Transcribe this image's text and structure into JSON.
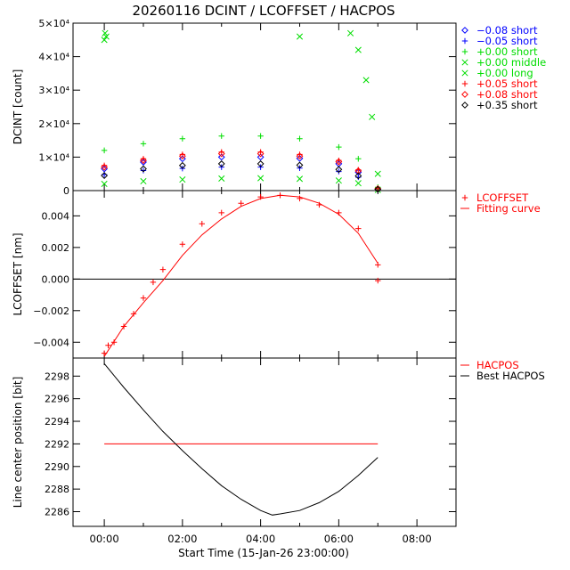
{
  "title": "20260116 DCINT / LCOFFSET / HACPOS",
  "xlabel": "Start Time (15-Jan-26 23:00:00)",
  "x_ticks": [
    "00:00",
    "02:00",
    "04:00",
    "06:00",
    "08:00"
  ],
  "chart_data": [
    {
      "type": "scatter",
      "panel": "top",
      "ylabel": "DCINT [count]",
      "xlim_hours": [
        -0.8,
        9.0
      ],
      "ylim": [
        0,
        50000
      ],
      "y_ticks": [
        {
          "value": 0,
          "label": "0"
        },
        {
          "value": 10000,
          "label": "1×10⁴"
        },
        {
          "value": 20000,
          "label": "2×10⁴"
        },
        {
          "value": 30000,
          "label": "3×10⁴"
        },
        {
          "value": 40000,
          "label": "4×10⁴"
        },
        {
          "value": 50000,
          "label": "5×10⁴"
        }
      ],
      "legend_position": "right",
      "series": [
        {
          "name": "−0.08 short",
          "marker": "diamond",
          "color": "#0000ff",
          "x": [
            0.0,
            1.0,
            2.0,
            3.0,
            4.0,
            5.0,
            6.0,
            6.5,
            7.0
          ],
          "y": [
            6500,
            8500,
            9500,
            10000,
            10000,
            9600,
            8000,
            5500,
            500
          ]
        },
        {
          "name": "−0.05 short",
          "marker": "plus",
          "color": "#0000ff",
          "x": [
            0.0,
            1.0,
            2.0,
            3.0,
            4.0,
            5.0,
            6.0,
            6.5,
            7.0
          ],
          "y": [
            4800,
            6000,
            6600,
            7000,
            7000,
            6700,
            5700,
            4000,
            300
          ]
        },
        {
          "name": "+0.00 short",
          "marker": "plus",
          "color": "#00dd00",
          "x": [
            0.0,
            1.0,
            2.0,
            3.0,
            4.0,
            5.0,
            6.0,
            6.5,
            7.0
          ],
          "y": [
            12000,
            14000,
            15500,
            16300,
            16300,
            15500,
            13000,
            9500,
            1000
          ]
        },
        {
          "name": "+0.00 middle",
          "marker": "x",
          "color": "#00dd00",
          "x": [
            0.0,
            0.02,
            0.05,
            5.0,
            6.3,
            6.5,
            6.7,
            6.85,
            7.0
          ],
          "y": [
            45000,
            47000,
            46000,
            46000,
            47000,
            42000,
            33000,
            22000,
            5000
          ]
        },
        {
          "name": "+0.00 long",
          "marker": "x",
          "color": "#00dd00",
          "x": [
            0.0,
            1.0,
            2.0,
            3.0,
            4.0,
            5.0,
            6.0,
            6.5,
            7.0
          ],
          "y": [
            2000,
            2800,
            3300,
            3600,
            3700,
            3500,
            3000,
            2200,
            200
          ]
        },
        {
          "name": "+0.05 short",
          "marker": "plus",
          "color": "#ff0000",
          "x": [
            0.0,
            1.0,
            2.0,
            3.0,
            4.0,
            5.0,
            6.0,
            6.5,
            7.0
          ],
          "y": [
            7500,
            9500,
            10800,
            11500,
            11500,
            10800,
            9000,
            6200,
            600
          ]
        },
        {
          "name": "+0.08 short",
          "marker": "diamond",
          "color": "#ff0000",
          "x": [
            0.0,
            1.0,
            2.0,
            3.0,
            4.0,
            5.0,
            6.0,
            6.5,
            7.0
          ],
          "y": [
            7000,
            9000,
            10300,
            11000,
            11000,
            10300,
            8600,
            5900,
            550
          ]
        },
        {
          "name": "+0.35 short",
          "marker": "diamond",
          "color": "#000000",
          "x": [
            0.0,
            1.0,
            2.0,
            3.0,
            4.0,
            5.0,
            6.0,
            6.5,
            7.0
          ],
          "y": [
            4500,
            6500,
            7500,
            8000,
            8000,
            7600,
            6300,
            4400,
            400
          ]
        }
      ]
    },
    {
      "type": "scatter",
      "panel": "middle",
      "ylabel": "LCOFFSET [nm]",
      "xlim_hours": [
        -0.8,
        9.0
      ],
      "ylim": [
        -0.005,
        0.0056
      ],
      "y_ticks": [
        {
          "value": -0.004,
          "label": "−0.004"
        },
        {
          "value": -0.002,
          "label": "−0.002"
        },
        {
          "value": 0.0,
          "label": "0.000"
        },
        {
          "value": 0.002,
          "label": "0.002"
        },
        {
          "value": 0.004,
          "label": "0.004"
        }
      ],
      "zero_line": true,
      "legend_position": "right",
      "series": [
        {
          "name": "LCOFFSET",
          "marker": "plus",
          "color": "#ff0000",
          "x": [
            0.0,
            0.1,
            0.25,
            0.5,
            0.75,
            1.0,
            1.25,
            1.5,
            2.0,
            2.5,
            3.0,
            3.5,
            4.0,
            4.5,
            5.0,
            5.5,
            6.0,
            6.5,
            7.0,
            7.0
          ],
          "y": [
            -0.0047,
            -0.0042,
            -0.004,
            -0.003,
            -0.0022,
            -0.0012,
            -0.0002,
            0.0006,
            0.0022,
            0.0035,
            0.0042,
            0.0048,
            0.0052,
            0.0053,
            0.0051,
            0.0047,
            0.0042,
            0.0032,
            0.0009,
            -0.0001
          ]
        },
        {
          "name": "Fitting curve",
          "marker": "line",
          "color": "#ff0000",
          "x": [
            0.0,
            0.5,
            1.0,
            1.5,
            2.0,
            2.5,
            3.0,
            3.5,
            4.0,
            4.5,
            5.0,
            5.5,
            6.0,
            6.5,
            7.0
          ],
          "y": [
            -0.0049,
            -0.003,
            -0.0015,
            -0.0001,
            0.0015,
            0.0028,
            0.0038,
            0.0046,
            0.0051,
            0.0053,
            0.0052,
            0.0048,
            0.0041,
            0.0029,
            0.001
          ]
        }
      ]
    },
    {
      "type": "line",
      "panel": "bottom",
      "ylabel": "Line center position [bit]",
      "xlim_hours": [
        -0.8,
        9.0
      ],
      "ylim": [
        2284.7,
        2299.6
      ],
      "y_ticks": [
        {
          "value": 2286,
          "label": "2286"
        },
        {
          "value": 2288,
          "label": "2288"
        },
        {
          "value": 2290,
          "label": "2290"
        },
        {
          "value": 2292,
          "label": "2292"
        },
        {
          "value": 2294,
          "label": "2294"
        },
        {
          "value": 2296,
          "label": "2296"
        },
        {
          "value": 2298,
          "label": "2298"
        }
      ],
      "legend_position": "right",
      "series": [
        {
          "name": "HACPOS",
          "color": "#ff0000",
          "x": [
            0.0,
            7.0
          ],
          "y": [
            2292,
            2292
          ]
        },
        {
          "name": "Best HACPOS",
          "color": "#000000",
          "x": [
            0.0,
            0.5,
            1.0,
            1.5,
            2.0,
            2.5,
            3.0,
            3.5,
            4.0,
            4.3,
            4.5,
            5.0,
            5.5,
            6.0,
            6.5,
            7.0
          ],
          "y": [
            2299.1,
            2297.0,
            2295.0,
            2293.1,
            2291.4,
            2289.8,
            2288.3,
            2287.1,
            2286.1,
            2285.7,
            2285.8,
            2286.1,
            2286.8,
            2287.8,
            2289.2,
            2290.8
          ]
        }
      ]
    }
  ]
}
